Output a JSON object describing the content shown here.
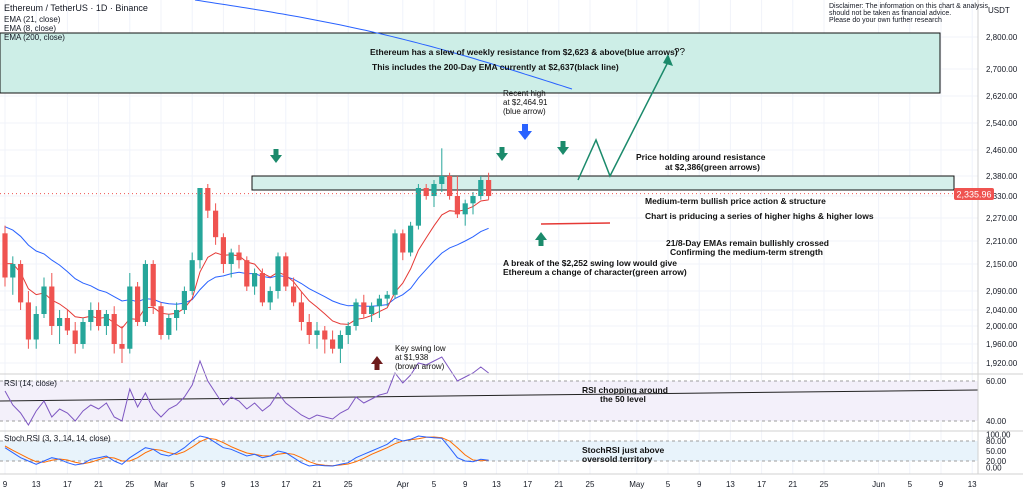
{
  "header": {
    "symbol_line": "Ethereum / TetherUS · 1D · Binance",
    "indicators": [
      "EMA (21, close)",
      "EMA (8, close)",
      "EMA (200, close)"
    ],
    "disclaimer": [
      "Disclaimer: The information on this chart & analysis",
      "should not be taken as financial advice.",
      "Please do your own further research"
    ],
    "currency": "USDT"
  },
  "colors": {
    "up": "#26a69a",
    "down": "#ef5350",
    "ema21": "#2962ff",
    "ema8": "#e53935",
    "ema200": "#2962ff",
    "zone_fill": "#b2dfdb",
    "zone_stroke": "#111111",
    "rsi": "#7e57c2",
    "stoch_k": "#2962ff",
    "stoch_d": "#ff6d00",
    "arrow_green": "#1b8a6b",
    "arrow_blue": "#2962ff",
    "arrow_brown": "#6d1b1b",
    "last_price_bg": "#ef5350"
  },
  "chart_data": [
    {
      "type": "candlestick",
      "title": "Ethereum / TetherUS · 1D · Binance",
      "ylim": [
        1870,
        2880
      ],
      "y_ticks": [
        1920,
        1960,
        2000,
        2040,
        2090,
        2150,
        2210,
        2270,
        2330,
        2380,
        2460,
        2540,
        2620,
        2700,
        2800
      ],
      "y_tick_labels": [
        "1,920.00",
        "1,960.00",
        "2,000.00",
        "2,040.00",
        "2,090.00",
        "2,150.00",
        "2,210.00",
        "2,270.00",
        "2,330.00",
        "2,380.00",
        "2,460.00",
        "2,540.00",
        "2,620.00",
        "2,700.00",
        "2,800.00"
      ],
      "last_price": 2335.96,
      "last_price_label": "2,335.96",
      "x_ticks": [
        {
          "i": 0,
          "label": "9"
        },
        {
          "i": 4,
          "label": "13"
        },
        {
          "i": 8,
          "label": "17"
        },
        {
          "i": 12,
          "label": "21"
        },
        {
          "i": 16,
          "label": "25"
        },
        {
          "i": 20,
          "label": "Mar"
        },
        {
          "i": 24,
          "label": "5"
        },
        {
          "i": 28,
          "label": "9"
        },
        {
          "i": 32,
          "label": "13"
        },
        {
          "i": 36,
          "label": "17"
        },
        {
          "i": 40,
          "label": "21"
        },
        {
          "i": 44,
          "label": "25"
        },
        {
          "i": 51,
          "label": "Apr"
        },
        {
          "i": 55,
          "label": "5"
        },
        {
          "i": 59,
          "label": "9"
        },
        {
          "i": 63,
          "label": "13"
        },
        {
          "i": 67,
          "label": "17"
        },
        {
          "i": 71,
          "label": "21"
        },
        {
          "i": 75,
          "label": "25"
        },
        {
          "i": 81,
          "label": "May"
        },
        {
          "i": 85,
          "label": "5"
        },
        {
          "i": 89,
          "label": "9"
        },
        {
          "i": 93,
          "label": "13"
        },
        {
          "i": 97,
          "label": "17"
        },
        {
          "i": 101,
          "label": "21"
        },
        {
          "i": 105,
          "label": "25"
        },
        {
          "i": 112,
          "label": "Jun"
        },
        {
          "i": 116,
          "label": "5"
        },
        {
          "i": 120,
          "label": "9"
        },
        {
          "i": 124,
          "label": "13"
        }
      ],
      "candles": [
        [
          2230,
          2250,
          2100,
          2120
        ],
        [
          2120,
          2170,
          2080,
          2150
        ],
        [
          2150,
          2160,
          2040,
          2060
        ],
        [
          2060,
          2090,
          1950,
          1970
        ],
        [
          1970,
          2050,
          1950,
          2030
        ],
        [
          2030,
          2120,
          2020,
          2100
        ],
        [
          2100,
          2130,
          1980,
          2000
        ],
        [
          2000,
          2040,
          1960,
          2020
        ],
        [
          2020,
          2040,
          1980,
          1990
        ],
        [
          1990,
          2010,
          1940,
          1960
        ],
        [
          1960,
          2020,
          1950,
          2010
        ],
        [
          2010,
          2060,
          1990,
          2040
        ],
        [
          2040,
          2060,
          1990,
          2000
        ],
        [
          2000,
          2040,
          1980,
          2030
        ],
        [
          2030,
          2050,
          1940,
          1960
        ],
        [
          1960,
          2000,
          1920,
          1950
        ],
        [
          1950,
          2130,
          1940,
          2100
        ],
        [
          2100,
          2110,
          2000,
          2010
        ],
        [
          2010,
          2160,
          2000,
          2150
        ],
        [
          2150,
          2160,
          2030,
          2050
        ],
        [
          2050,
          2060,
          1970,
          1980
        ],
        [
          1980,
          2030,
          1970,
          2020
        ],
        [
          2020,
          2060,
          1990,
          2040
        ],
        [
          2040,
          2100,
          2030,
          2090
        ],
        [
          2090,
          2180,
          2080,
          2160
        ],
        [
          2160,
          2350,
          2140,
          2350
        ],
        [
          2350,
          2360,
          2270,
          2290
        ],
        [
          2290,
          2310,
          2200,
          2220
        ],
        [
          2220,
          2230,
          2130,
          2150
        ],
        [
          2150,
          2190,
          2120,
          2180
        ],
        [
          2180,
          2200,
          2140,
          2160
        ],
        [
          2160,
          2170,
          2090,
          2100
        ],
        [
          2100,
          2140,
          2080,
          2130
        ],
        [
          2130,
          2140,
          2050,
          2060
        ],
        [
          2060,
          2100,
          2040,
          2090
        ],
        [
          2090,
          2180,
          2070,
          2170
        ],
        [
          2170,
          2180,
          2090,
          2100
        ],
        [
          2100,
          2120,
          2050,
          2060
        ],
        [
          2060,
          2090,
          1990,
          2010
        ],
        [
          2010,
          2030,
          1960,
          1980
        ],
        [
          1980,
          2010,
          1950,
          1990
        ],
        [
          1990,
          2000,
          1940,
          1970
        ],
        [
          1970,
          1990,
          1940,
          1950
        ],
        [
          1950,
          1990,
          1920,
          1980
        ],
        [
          1980,
          2010,
          1960,
          2000
        ],
        [
          2000,
          2070,
          1990,
          2060
        ],
        [
          2060,
          2080,
          2020,
          2030
        ],
        [
          2030,
          2060,
          2010,
          2050
        ],
        [
          2050,
          2080,
          2020,
          2070
        ],
        [
          2070,
          2090,
          2050,
          2080
        ],
        [
          2080,
          2240,
          2070,
          2230
        ],
        [
          2230,
          2240,
          2160,
          2180
        ],
        [
          2180,
          2260,
          2170,
          2250
        ],
        [
          2250,
          2360,
          2240,
          2350
        ],
        [
          2350,
          2360,
          2320,
          2330
        ],
        [
          2330,
          2370,
          2300,
          2360
        ],
        [
          2360,
          2465,
          2340,
          2380
        ],
        [
          2380,
          2390,
          2320,
          2330
        ],
        [
          2330,
          2380,
          2270,
          2280
        ],
        [
          2280,
          2320,
          2250,
          2310
        ],
        [
          2310,
          2340,
          2280,
          2330
        ],
        [
          2330,
          2380,
          2320,
          2370
        ],
        [
          2370,
          2390,
          2320,
          2330
        ]
      ]
    },
    {
      "type": "line",
      "title": "RSI (14, close)",
      "ylim": [
        20,
        80
      ],
      "y_ticks": [
        40,
        60
      ],
      "y_tick_labels": [
        "40.00",
        "60.00"
      ],
      "values": [
        55,
        48,
        44,
        38,
        45,
        50,
        42,
        46,
        44,
        40,
        45,
        48,
        46,
        49,
        42,
        40,
        56,
        47,
        54,
        46,
        42,
        46,
        48,
        52,
        58,
        70,
        60,
        54,
        48,
        52,
        50,
        46,
        49,
        45,
        48,
        54,
        49,
        46,
        43,
        41,
        43,
        42,
        41,
        44,
        46,
        52,
        49,
        51,
        53,
        54,
        64,
        59,
        63,
        69,
        68,
        70,
        72,
        66,
        60,
        62,
        64,
        67,
        64
      ]
    },
    {
      "type": "line",
      "title": "Stoch RSI (3, 3, 14, 14, close)",
      "ylim": [
        -10,
        110
      ],
      "y_ticks": [
        0,
        20,
        50,
        80,
        100
      ],
      "y_tick_labels": [
        "0.00",
        "20.00",
        "50.00",
        "80.00",
        "100.00"
      ],
      "series": [
        {
          "name": "K",
          "values": [
            60,
            45,
            30,
            20,
            10,
            20,
            30,
            25,
            15,
            8,
            12,
            25,
            30,
            35,
            20,
            10,
            30,
            45,
            60,
            55,
            40,
            35,
            45,
            60,
            80,
            95,
            90,
            75,
            60,
            55,
            45,
            35,
            40,
            30,
            35,
            50,
            45,
            30,
            15,
            5,
            8,
            6,
            5,
            10,
            15,
            30,
            40,
            50,
            60,
            70,
            88,
            80,
            85,
            95,
            92,
            90,
            88,
            60,
            30,
            20,
            18,
            25,
            22
          ]
        },
        {
          "name": "D",
          "values": [
            65,
            52,
            40,
            28,
            18,
            16,
            22,
            26,
            23,
            16,
            12,
            16,
            24,
            31,
            29,
            20,
            20,
            30,
            45,
            55,
            52,
            45,
            40,
            48,
            62,
            78,
            88,
            85,
            75,
            63,
            53,
            44,
            40,
            36,
            35,
            40,
            43,
            40,
            30,
            18,
            10,
            7,
            6,
            8,
            11,
            18,
            28,
            40,
            50,
            60,
            72,
            80,
            84,
            87,
            91,
            92,
            90,
            80,
            60,
            38,
            23,
            21,
            22
          ]
        }
      ]
    }
  ],
  "annotations": {
    "weekly_res_1": "Ethereum has a slew of weekly resistance from $2,623 & above(blue arrows)",
    "weekly_res_2": "This includes the 200-Day EMA currently at $2,637(black line)",
    "question": "??",
    "recent_high_1": "Recent high",
    "recent_high_2": "at $2,464.91",
    "recent_high_3": "(blue arrow)",
    "holding_1": "Price holding around resistance",
    "holding_2": "at $2,386(green arrows)",
    "medium_term": "Medium-term bullish price action & structure",
    "higher_highs": "Chart is priducing a series of higher highs & higher lows",
    "ema_cross_1": "21/8-Day EMAs remain bullishly crossed",
    "ema_cross_2": "Confirming the medium-term strength",
    "break_1": "A break of the $2,252 swing low would give",
    "break_2": "Ethereum a change of character(green arrow)",
    "swing_low_1": "Key swing low",
    "swing_low_2": "at $1,938",
    "swing_low_3": "(brown arrow)",
    "rsi_note_1": "RSI chopping around",
    "rsi_note_2": "the 50 level",
    "stoch_note_1": "StochRSI just above",
    "stoch_note_2": "oversold territory"
  }
}
